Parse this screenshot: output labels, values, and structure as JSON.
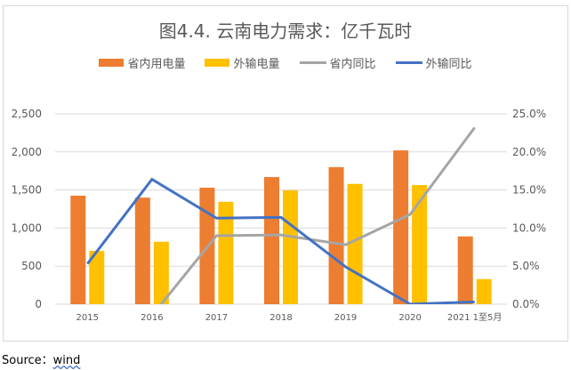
{
  "chart_data": {
    "type": "bar+line",
    "title": "图4.4. 云南电力需求：亿千瓦时",
    "categories": [
      "2015",
      "2016",
      "2017",
      "2018",
      "2019",
      "2020",
      "2021 1至5月"
    ],
    "series": [
      {
        "name": "省内用电量",
        "type": "bar",
        "axis": "left",
        "color": "#ed7d31",
        "values": [
          1425,
          1400,
          1530,
          1670,
          1800,
          2020,
          890
        ]
      },
      {
        "name": "外输电量",
        "type": "bar",
        "axis": "left",
        "color": "#ffc000",
        "values": [
          700,
          820,
          1345,
          1495,
          1580,
          1565,
          330
        ]
      },
      {
        "name": "省内同比",
        "type": "line",
        "axis": "right",
        "color": "#a5a5a5",
        "values": [
          null,
          -1.5,
          9.0,
          9.1,
          7.8,
          11.8,
          23.2
        ]
      },
      {
        "name": "外输同比",
        "type": "line",
        "axis": "right",
        "color": "#4472c4",
        "values": [
          5.3,
          16.4,
          11.3,
          11.4,
          4.9,
          0.0,
          0.3
        ]
      }
    ],
    "left_axis": {
      "ylim": [
        0,
        2500
      ],
      "ticks": [
        "0",
        "500",
        "1,000",
        "1,500",
        "2,000",
        "2,500"
      ]
    },
    "right_axis": {
      "ylim": [
        0,
        25
      ],
      "ticks": [
        "0.0%",
        "5.0%",
        "10.0%",
        "15.0%",
        "20.0%",
        "25.0%"
      ]
    },
    "grid": true,
    "legend": "top"
  },
  "source": {
    "label": "Source：",
    "value": "wind"
  }
}
